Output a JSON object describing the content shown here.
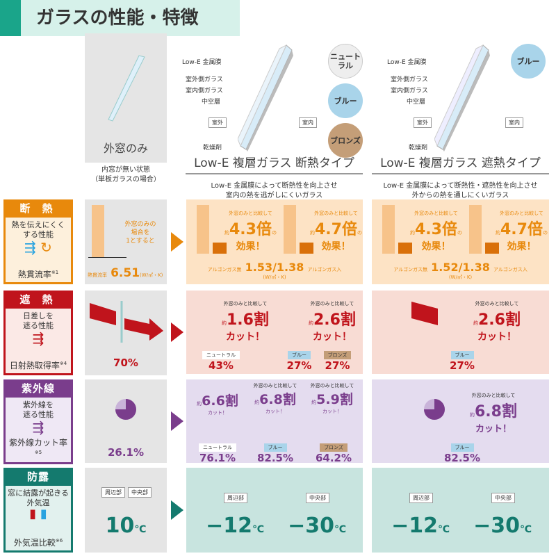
{
  "title": "ガラスの性能・特徴",
  "columns": {
    "single": {
      "name": "外窓のみ",
      "caption1": "内窓が無い状態",
      "caption2": "（単板ガラスの場合）"
    },
    "insulation": {
      "name": "Low-E 複層ガラス 断熱タイプ",
      "desc1": "Low-E 金属膜によって断熱性を向上させ",
      "desc2": "室内の熱を逃がしにくいガラス",
      "colors": [
        "ニュートラル",
        "ブルー",
        "ブロンズ"
      ]
    },
    "shield": {
      "name": "Low-E 複層ガラス 遮熱タイプ",
      "desc1": "Low-E 金属膜によって断熱性・遮熱性を向上させ",
      "desc2": "外からの熱を通しにくいガラス",
      "colors": [
        "ブルー"
      ]
    }
  },
  "diagram": {
    "low_e": "Low-E 金属膜",
    "outer_glass": "室外側ガラス",
    "inner_glass": "室内側ガラス",
    "hollow": "中空層",
    "outside": "室外",
    "inside": "室内",
    "desiccant": "乾燥剤"
  },
  "rows": {
    "insulation": {
      "head": "断 熱",
      "desc1": "熱を伝えにくく",
      "desc2": "する性能",
      "foot": "熱貫流率",
      "note": "※1",
      "color": "#e8890c",
      "single_note1": "外窓のみの",
      "single_note2": "場合を",
      "single_note3": "1とすると",
      "single_label": "熱貫流率",
      "single_value": "6.51",
      "single_unit": "(W/㎡・K)",
      "compare": "外窓のみと比較して",
      "approx": "約",
      "ratio_a": "4.3倍",
      "ratio_b": "4.7倍",
      "suffix": "の",
      "effect": "効果！",
      "ins_values": "1.53/1.38",
      "shd_values": "1.52/1.38",
      "gas_a": "アルゴンガス無",
      "gas_b": "アルゴンガス入",
      "unit": "(W/㎡・K)",
      "label": "熱貫流率"
    },
    "solar": {
      "head": "遮 熱",
      "desc1": "日差しを",
      "desc2": "遮る性能",
      "foot": "日射熱取得率",
      "note": "※4",
      "color": "#c0141c",
      "single_value": "70%",
      "compare": "外窓のみと比較して",
      "approx": "約",
      "cut_a": "1.6割",
      "cut_b": "2.6割",
      "cut": "カット！",
      "items": [
        {
          "name": "ニュートラル",
          "value": "43%"
        },
        {
          "name": "ブルー",
          "value": "27%"
        },
        {
          "name": "ブロンズ",
          "value": "27%"
        }
      ],
      "shd_item": {
        "name": "ブルー",
        "value": "27%"
      }
    },
    "uv": {
      "head": "紫外線",
      "desc1": "紫外線を",
      "desc2": "遮る性能",
      "foot": "紫外線カット率",
      "note": "※5",
      "color": "#7a3d8c",
      "single_value": "26.1%",
      "compare": "外窓のみと比較して",
      "approx": "約",
      "cut": "カット！",
      "items": [
        {
          "name": "ニュートラル",
          "cut": "6.6割",
          "value": "76.1%"
        },
        {
          "name": "ブルー",
          "cut": "6.8割",
          "value": "82.5%"
        },
        {
          "name": "ブロンズ",
          "cut": "5.9割",
          "value": "64.2%"
        }
      ],
      "shd_item": {
        "name": "ブルー",
        "cut": "6.8割",
        "value": "82.5%"
      }
    },
    "dew": {
      "head": "防露",
      "desc1": "窓に結露が起きる",
      "desc2": "外気温",
      "foot": "外気温比較",
      "note": "※6",
      "color": "#147a6e",
      "edge": "周辺部",
      "center": "中央部",
      "single_value": "10",
      "unit": "℃",
      "ins_edge": "−12",
      "ins_center": "−30",
      "shd_edge": "−12",
      "shd_center": "−30"
    }
  }
}
